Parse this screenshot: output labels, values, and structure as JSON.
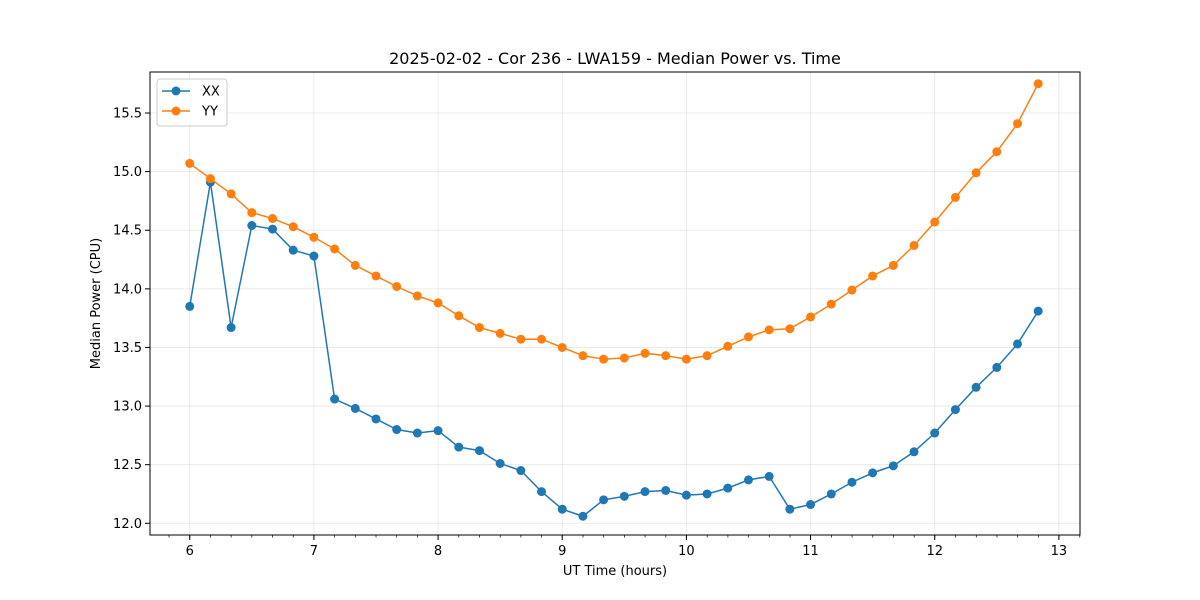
{
  "chart_data": {
    "type": "line",
    "title": "2025-02-02 - Cor 236 - LWA159 - Median Power vs. Time",
    "xlabel": "UT Time (hours)",
    "ylabel": "Median Power (CPU)",
    "xlim": [
      5.68,
      13.17
    ],
    "ylim": [
      11.9,
      15.85
    ],
    "xticks": [
      6,
      7,
      8,
      9,
      10,
      11,
      12,
      13
    ],
    "yticks": [
      12.0,
      12.5,
      13.0,
      13.5,
      14.0,
      14.5,
      15.0,
      15.5
    ],
    "minor_x_step": 0.1667,
    "grid": true,
    "legend_position": "top-left",
    "x": [
      6.0,
      6.1667,
      6.3333,
      6.5,
      6.6667,
      6.8333,
      7.0,
      7.1667,
      7.3333,
      7.5,
      7.6667,
      7.8333,
      8.0,
      8.1667,
      8.3333,
      8.5,
      8.6667,
      8.8333,
      9.0,
      9.1667,
      9.3333,
      9.5,
      9.6667,
      9.8333,
      10.0,
      10.1667,
      10.3333,
      10.5,
      10.6667,
      10.8333,
      11.0,
      11.1667,
      11.3333,
      11.5,
      11.6667,
      11.8333,
      12.0,
      12.1667,
      12.3333,
      12.5,
      12.6667,
      12.8333
    ],
    "series": [
      {
        "name": "XX",
        "color": "#1f77b4",
        "values": [
          13.85,
          14.91,
          13.67,
          14.54,
          14.51,
          14.33,
          14.28,
          13.06,
          12.98,
          12.89,
          12.8,
          12.77,
          12.79,
          12.65,
          12.62,
          12.51,
          12.45,
          12.27,
          12.12,
          12.06,
          12.2,
          12.23,
          12.27,
          12.28,
          12.24,
          12.25,
          12.3,
          12.37,
          12.4,
          12.12,
          12.16,
          12.25,
          12.35,
          12.43,
          12.49,
          12.61,
          12.77,
          12.97,
          13.16,
          13.33,
          13.53,
          13.81
        ]
      },
      {
        "name": "YY",
        "color": "#ff7f0e",
        "values": [
          15.07,
          14.94,
          14.81,
          14.65,
          14.6,
          14.53,
          14.44,
          14.34,
          14.2,
          14.11,
          14.02,
          13.94,
          13.88,
          13.77,
          13.67,
          13.62,
          13.57,
          13.57,
          13.5,
          13.43,
          13.4,
          13.41,
          13.45,
          13.43,
          13.4,
          13.43,
          13.51,
          13.59,
          13.65,
          13.66,
          13.76,
          13.87,
          13.99,
          14.11,
          14.2,
          14.37,
          14.57,
          14.78,
          14.99,
          15.17,
          15.41,
          15.75
        ]
      }
    ]
  }
}
